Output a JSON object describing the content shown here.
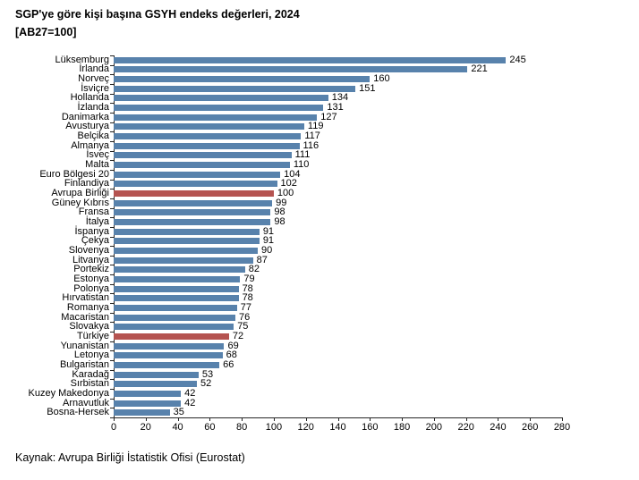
{
  "header": {
    "title": "SGP'ye göre kişi başına GSYH endeks değerleri, 2024",
    "subtitle": "[AB27=100]"
  },
  "footer": {
    "source": "Kaynak: Avrupa Birliği İstatistik Ofisi (Eurostat)"
  },
  "chart_data": {
    "type": "bar",
    "orientation": "horizontal",
    "title": "SGP'ye göre kişi başına GSYH endeks değerleri, 2024",
    "subtitle": "[AB27=100]",
    "categories": [
      "Lüksemburg",
      "İrlanda",
      "Norveç",
      "İsviçre",
      "Hollanda",
      "İzlanda",
      "Danimarka",
      "Avusturya",
      "Belçika",
      "Almanya",
      "İsveç",
      "Malta",
      "Euro Bölgesi 20",
      "Finlandiya",
      "Avrupa Birliği",
      "Güney Kıbrıs",
      "Fransa",
      "İtalya",
      "İspanya",
      "Çekya",
      "Slovenya",
      "Litvanya",
      "Portekiz",
      "Estonya",
      "Polonya",
      "Hırvatistan",
      "Romanya",
      "Macaristan",
      "Slovakya",
      "Türkiye",
      "Yunanistan",
      "Letonya",
      "Bulgaristan",
      "Karadağ",
      "Sırbistan",
      "Kuzey Makedonya",
      "Arnavutluk",
      "Bosna-Hersek"
    ],
    "values": [
      245,
      221,
      160,
      151,
      134,
      131,
      127,
      119,
      117,
      116,
      111,
      110,
      104,
      102,
      100,
      99,
      98,
      98,
      91,
      91,
      90,
      87,
      82,
      79,
      78,
      78,
      77,
      76,
      75,
      72,
      69,
      68,
      66,
      53,
      52,
      42,
      42,
      35
    ],
    "highlighted_categories": [
      "Avrupa Birliği",
      "Türkiye"
    ],
    "bar_color": "#5882ac",
    "highlight_color": "#b55350",
    "xlim": [
      0,
      280
    ],
    "xticks": [
      0,
      20,
      40,
      60,
      80,
      100,
      120,
      140,
      160,
      180,
      200,
      220,
      240,
      260,
      280
    ],
    "grid": false,
    "legend": "none",
    "value_labels": true
  }
}
